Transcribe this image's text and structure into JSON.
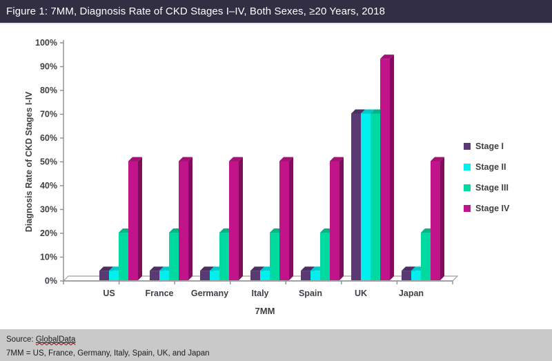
{
  "title": "Figure 1: 7MM, Diagnosis Rate of CKD Stages I–IV, Both Sexes, ≥20 Years, 2018",
  "colors": {
    "titlebar_bg": "#322E44",
    "titlebar_text": "#FFFFFF",
    "footer_bg": "#C9C9C9",
    "axis_text": "#3F3F46",
    "axis_line": "#8C8C8C",
    "floor_edge": "#A0A0A0"
  },
  "chart_data": {
    "type": "bar",
    "projection": "3d-clustered-column",
    "categories": [
      "US",
      "France",
      "Germany",
      "Italy",
      "Spain",
      "UK",
      "Japan"
    ],
    "series": [
      {
        "name": "Stage I",
        "color": "#5A3A72",
        "values": [
          4,
          4,
          4,
          4,
          4,
          70,
          4
        ]
      },
      {
        "name": "Stage II",
        "color": "#00EFEF",
        "values": [
          4,
          4,
          4,
          4,
          4,
          70,
          4
        ]
      },
      {
        "name": "Stage III",
        "color": "#00D9A0",
        "values": [
          20,
          20,
          20,
          20,
          20,
          70,
          20
        ]
      },
      {
        "name": "Stage IV",
        "color": "#C1148A",
        "values": [
          50,
          50,
          50,
          50,
          50,
          93,
          50
        ]
      }
    ],
    "xlabel": "7MM",
    "ylabel": "Diagnosis Rate of CKD Stages I-IV",
    "ylim": [
      0,
      100
    ],
    "ytick_step": 10,
    "yticklabels": [
      "0%",
      "10%",
      "20%",
      "30%",
      "40%",
      "50%",
      "60%",
      "70%",
      "80%",
      "90%",
      "100%"
    ],
    "legend_position": "right",
    "grid": false
  },
  "footer": {
    "source_label": "Source:",
    "source_value": "GlobalData",
    "note": "7MM = US, France, Germany, Italy, Spain, UK, and Japan"
  }
}
